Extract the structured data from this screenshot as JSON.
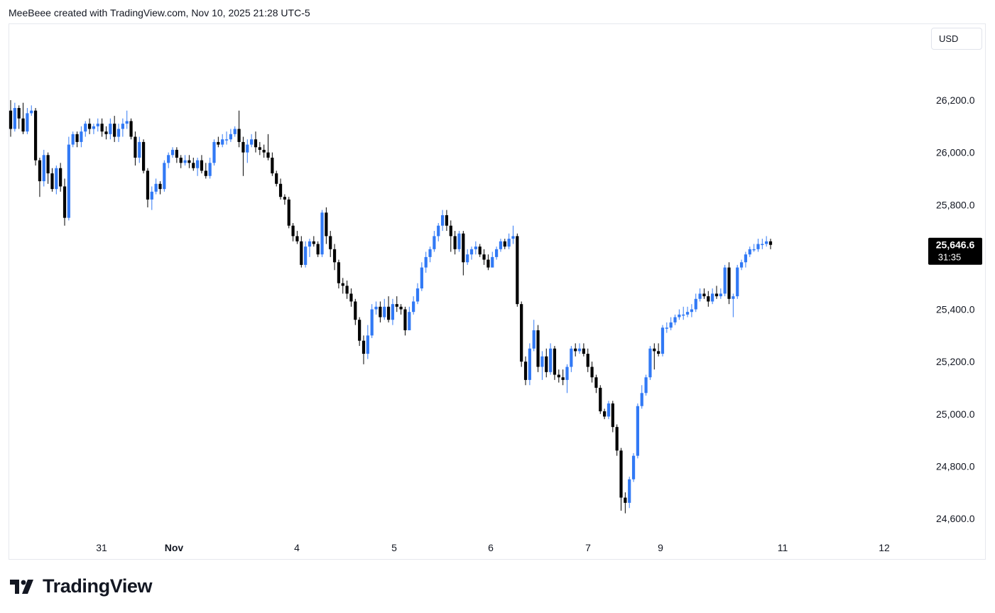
{
  "header": {
    "attribution": "MeeBeee created with TradingView.com, Nov 10, 2025 21:28 UTC-5"
  },
  "currency": "USD",
  "brand": {
    "name": "TradingView"
  },
  "colors": {
    "up": "#3179f5",
    "down": "#000000",
    "last_price_bg": "#000000"
  },
  "chart_data": {
    "type": "candlestick",
    "y_ticks": [
      "26,200.0",
      "26,000.0",
      "25,800.0",
      "25,400.0",
      "25,200.0",
      "25,000.0",
      "24,800.0",
      "24,600.0"
    ],
    "y_tick_values": [
      26200,
      26000,
      25800,
      25400,
      25200,
      25000,
      24800,
      24600
    ],
    "x_ticks": [
      "31",
      "Nov",
      "4",
      "5",
      "6",
      "7",
      "9",
      "11",
      "12"
    ],
    "last_price": {
      "label": "25,646.6",
      "countdown": "31:35",
      "value": 25646.6
    },
    "candles": [
      [
        26160,
        26090,
        26200,
        26060
      ],
      [
        26090,
        26170,
        26190,
        26080
      ],
      [
        26170,
        26130,
        26180,
        26090
      ],
      [
        26130,
        26080,
        26190,
        26070
      ],
      [
        26080,
        26150,
        26170,
        26070
      ],
      [
        26150,
        26160,
        26180,
        26140
      ],
      [
        26160,
        25970,
        26170,
        25950
      ],
      [
        25970,
        25890,
        25980,
        25830
      ],
      [
        25890,
        25990,
        26010,
        25870
      ],
      [
        25990,
        25920,
        26000,
        25880
      ],
      [
        25920,
        25860,
        25940,
        25850
      ],
      [
        25860,
        25940,
        25950,
        25840
      ],
      [
        25940,
        25870,
        25960,
        25850
      ],
      [
        25870,
        25750,
        25900,
        25720
      ],
      [
        25750,
        26030,
        26060,
        25740
      ],
      [
        26030,
        26070,
        26080,
        26020
      ],
      [
        26070,
        26040,
        26080,
        26020
      ],
      [
        26040,
        26080,
        26100,
        26020
      ],
      [
        26080,
        26110,
        26120,
        26060
      ],
      [
        26110,
        26090,
        26130,
        26070
      ],
      [
        26090,
        26100,
        26110,
        26070
      ],
      [
        26100,
        26110,
        26130,
        26080
      ],
      [
        26110,
        26080,
        26130,
        26060
      ],
      [
        26080,
        26070,
        26100,
        26050
      ],
      [
        26070,
        26110,
        26130,
        26050
      ],
      [
        26110,
        26060,
        26140,
        26040
      ],
      [
        26060,
        26090,
        26110,
        26040
      ],
      [
        26090,
        26110,
        26130,
        26060
      ],
      [
        26110,
        26120,
        26160,
        26090
      ],
      [
        26120,
        26060,
        26130,
        26050
      ],
      [
        26060,
        25980,
        26080,
        25950
      ],
      [
        25980,
        26040,
        26060,
        25960
      ],
      [
        26040,
        25930,
        26050,
        25920
      ],
      [
        25930,
        25820,
        25940,
        25790
      ],
      [
        25820,
        25850,
        25870,
        25780
      ],
      [
        25850,
        25880,
        25900,
        25840
      ],
      [
        25880,
        25860,
        25890,
        25840
      ],
      [
        25860,
        25960,
        25970,
        25850
      ],
      [
        25960,
        25990,
        26000,
        25940
      ],
      [
        25990,
        26010,
        26020,
        25980
      ],
      [
        26010,
        25980,
        26020,
        25960
      ],
      [
        25980,
        25960,
        25990,
        25940
      ],
      [
        25960,
        25970,
        25990,
        25950
      ],
      [
        25970,
        25960,
        25990,
        25940
      ],
      [
        25960,
        25940,
        25980,
        25930
      ],
      [
        25940,
        25970,
        25980,
        25910
      ],
      [
        25970,
        25930,
        25990,
        25920
      ],
      [
        25930,
        25910,
        25960,
        25900
      ],
      [
        25910,
        25960,
        25980,
        25900
      ],
      [
        25960,
        26040,
        26050,
        25950
      ],
      [
        26040,
        26030,
        26060,
        26020
      ],
      [
        26030,
        26050,
        26070,
        26020
      ],
      [
        26050,
        26050,
        26080,
        26030
      ],
      [
        26050,
        26070,
        26090,
        26040
      ],
      [
        26070,
        26090,
        26100,
        26060
      ],
      [
        26090,
        26040,
        26160,
        26020
      ],
      [
        26040,
        26000,
        26060,
        25910
      ],
      [
        26000,
        26030,
        26050,
        25960
      ],
      [
        26030,
        26050,
        26070,
        26020
      ],
      [
        26050,
        26020,
        26080,
        26000
      ],
      [
        26020,
        26010,
        26040,
        25990
      ],
      [
        26010,
        26000,
        26030,
        25980
      ],
      [
        26000,
        25980,
        26070,
        25970
      ],
      [
        25980,
        25920,
        26000,
        25910
      ],
      [
        25920,
        25880,
        25930,
        25870
      ],
      [
        25880,
        25830,
        25900,
        25820
      ],
      [
        25830,
        25820,
        25840,
        25800
      ],
      [
        25820,
        25720,
        25830,
        25710
      ],
      [
        25720,
        25680,
        25730,
        25660
      ],
      [
        25680,
        25660,
        25700,
        25650
      ],
      [
        25660,
        25570,
        25680,
        25560
      ],
      [
        25570,
        25640,
        25660,
        25560
      ],
      [
        25640,
        25660,
        25670,
        25600
      ],
      [
        25660,
        25650,
        25680,
        25640
      ],
      [
        25650,
        25610,
        25660,
        25600
      ],
      [
        25610,
        25770,
        25780,
        25600
      ],
      [
        25770,
        25680,
        25790,
        25650
      ],
      [
        25680,
        25630,
        25700,
        25600
      ],
      [
        25630,
        25580,
        25650,
        25550
      ],
      [
        25580,
        25500,
        25590,
        25480
      ],
      [
        25500,
        25490,
        25520,
        25460
      ],
      [
        25490,
        25460,
        25510,
        25440
      ],
      [
        25460,
        25430,
        25480,
        25410
      ],
      [
        25430,
        25360,
        25440,
        25340
      ],
      [
        25360,
        25280,
        25370,
        25260
      ],
      [
        25280,
        25230,
        25300,
        25190
      ],
      [
        25230,
        25300,
        25340,
        25210
      ],
      [
        25300,
        25400,
        25420,
        25290
      ],
      [
        25400,
        25410,
        25430,
        25380
      ],
      [
        25410,
        25370,
        25430,
        25350
      ],
      [
        25370,
        25410,
        25440,
        25360
      ],
      [
        25410,
        25360,
        25450,
        25350
      ],
      [
        25360,
        25420,
        25440,
        25340
      ],
      [
        25420,
        25410,
        25450,
        25390
      ],
      [
        25410,
        25400,
        25420,
        25380
      ],
      [
        25400,
        25320,
        25410,
        25300
      ],
      [
        25320,
        25390,
        25410,
        25320
      ],
      [
        25390,
        25430,
        25450,
        25380
      ],
      [
        25430,
        25480,
        25500,
        25420
      ],
      [
        25480,
        25560,
        25580,
        25470
      ],
      [
        25560,
        25600,
        25620,
        25540
      ],
      [
        25600,
        25630,
        25640,
        25580
      ],
      [
        25630,
        25680,
        25700,
        25620
      ],
      [
        25680,
        25720,
        25730,
        25660
      ],
      [
        25720,
        25760,
        25780,
        25700
      ],
      [
        25760,
        25720,
        25780,
        25700
      ],
      [
        25720,
        25680,
        25740,
        25620
      ],
      [
        25680,
        25630,
        25700,
        25610
      ],
      [
        25630,
        25690,
        25700,
        25620
      ],
      [
        25690,
        25580,
        25700,
        25530
      ],
      [
        25580,
        25610,
        25630,
        25570
      ],
      [
        25610,
        25630,
        25640,
        25590
      ],
      [
        25630,
        25640,
        25660,
        25610
      ],
      [
        25640,
        25610,
        25650,
        25600
      ],
      [
        25610,
        25590,
        25630,
        25570
      ],
      [
        25590,
        25560,
        25610,
        25550
      ],
      [
        25560,
        25600,
        25620,
        25560
      ],
      [
        25600,
        25630,
        25640,
        25590
      ],
      [
        25630,
        25660,
        25670,
        25620
      ],
      [
        25660,
        25640,
        25670,
        25630
      ],
      [
        25640,
        25670,
        25690,
        25630
      ],
      [
        25670,
        25680,
        25720,
        25650
      ],
      [
        25680,
        25420,
        25690,
        25410
      ],
      [
        25420,
        25200,
        25430,
        25180
      ],
      [
        25200,
        25130,
        25220,
        25110
      ],
      [
        25130,
        25250,
        25270,
        25110
      ],
      [
        25250,
        25320,
        25360,
        25240
      ],
      [
        25320,
        25180,
        25340,
        25160
      ],
      [
        25180,
        25220,
        25240,
        25130
      ],
      [
        25220,
        25160,
        25250,
        25140
      ],
      [
        25160,
        25250,
        25270,
        25150
      ],
      [
        25250,
        25150,
        25260,
        25130
      ],
      [
        25150,
        25140,
        25170,
        25120
      ],
      [
        25140,
        25130,
        25170,
        25110
      ],
      [
        25130,
        25180,
        25190,
        25080
      ],
      [
        25180,
        25250,
        25260,
        25160
      ],
      [
        25250,
        25240,
        25270,
        25220
      ],
      [
        25240,
        25250,
        25270,
        25230
      ],
      [
        25250,
        25230,
        25270,
        25220
      ],
      [
        25230,
        25180,
        25250,
        25160
      ],
      [
        25180,
        25140,
        25200,
        25120
      ],
      [
        25140,
        25100,
        25150,
        25080
      ],
      [
        25100,
        25010,
        25110,
        25000
      ],
      [
        25010,
        24990,
        25020,
        24980
      ],
      [
        24990,
        25040,
        25050,
        24980
      ],
      [
        25040,
        24950,
        25050,
        24930
      ],
      [
        24950,
        24860,
        24960,
        24840
      ],
      [
        24860,
        24680,
        24870,
        24630
      ],
      [
        24680,
        24660,
        24700,
        24620
      ],
      [
        24660,
        24750,
        24760,
        24640
      ],
      [
        24750,
        24840,
        24850,
        24740
      ],
      [
        24840,
        25030,
        25040,
        24830
      ],
      [
        25030,
        25080,
        25110,
        25020
      ],
      [
        25080,
        25140,
        25150,
        25070
      ],
      [
        25140,
        25250,
        25260,
        25130
      ],
      [
        25250,
        25240,
        25270,
        25170
      ],
      [
        25240,
        25230,
        25270,
        25220
      ],
      [
        25230,
        25330,
        25340,
        25220
      ],
      [
        25330,
        25330,
        25350,
        25310
      ],
      [
        25330,
        25350,
        25370,
        25320
      ],
      [
        25350,
        25370,
        25380,
        25340
      ],
      [
        25370,
        25380,
        25400,
        25360
      ],
      [
        25380,
        25380,
        25410,
        25360
      ],
      [
        25380,
        25390,
        25410,
        25370
      ],
      [
        25390,
        25400,
        25420,
        25370
      ],
      [
        25400,
        25440,
        25460,
        25390
      ],
      [
        25440,
        25460,
        25480,
        25430
      ],
      [
        25460,
        25450,
        25480,
        25440
      ],
      [
        25450,
        25430,
        25470,
        25410
      ],
      [
        25430,
        25460,
        25480,
        25420
      ],
      [
        25460,
        25450,
        25490,
        25440
      ],
      [
        25450,
        25460,
        25480,
        25440
      ],
      [
        25460,
        25560,
        25570,
        25450
      ],
      [
        25560,
        25440,
        25580,
        25420
      ],
      [
        25440,
        25450,
        25460,
        25370
      ],
      [
        25450,
        25560,
        25570,
        25440
      ],
      [
        25560,
        25580,
        25590,
        25550
      ],
      [
        25580,
        25610,
        25620,
        25560
      ],
      [
        25610,
        25630,
        25640,
        25600
      ],
      [
        25630,
        25630,
        25650,
        25620
      ],
      [
        25630,
        25650,
        25670,
        25620
      ],
      [
        25650,
        25650,
        25670,
        25630
      ],
      [
        25650,
        25660,
        25680,
        25640
      ],
      [
        25660,
        25646.6,
        25670,
        25630
      ]
    ]
  }
}
